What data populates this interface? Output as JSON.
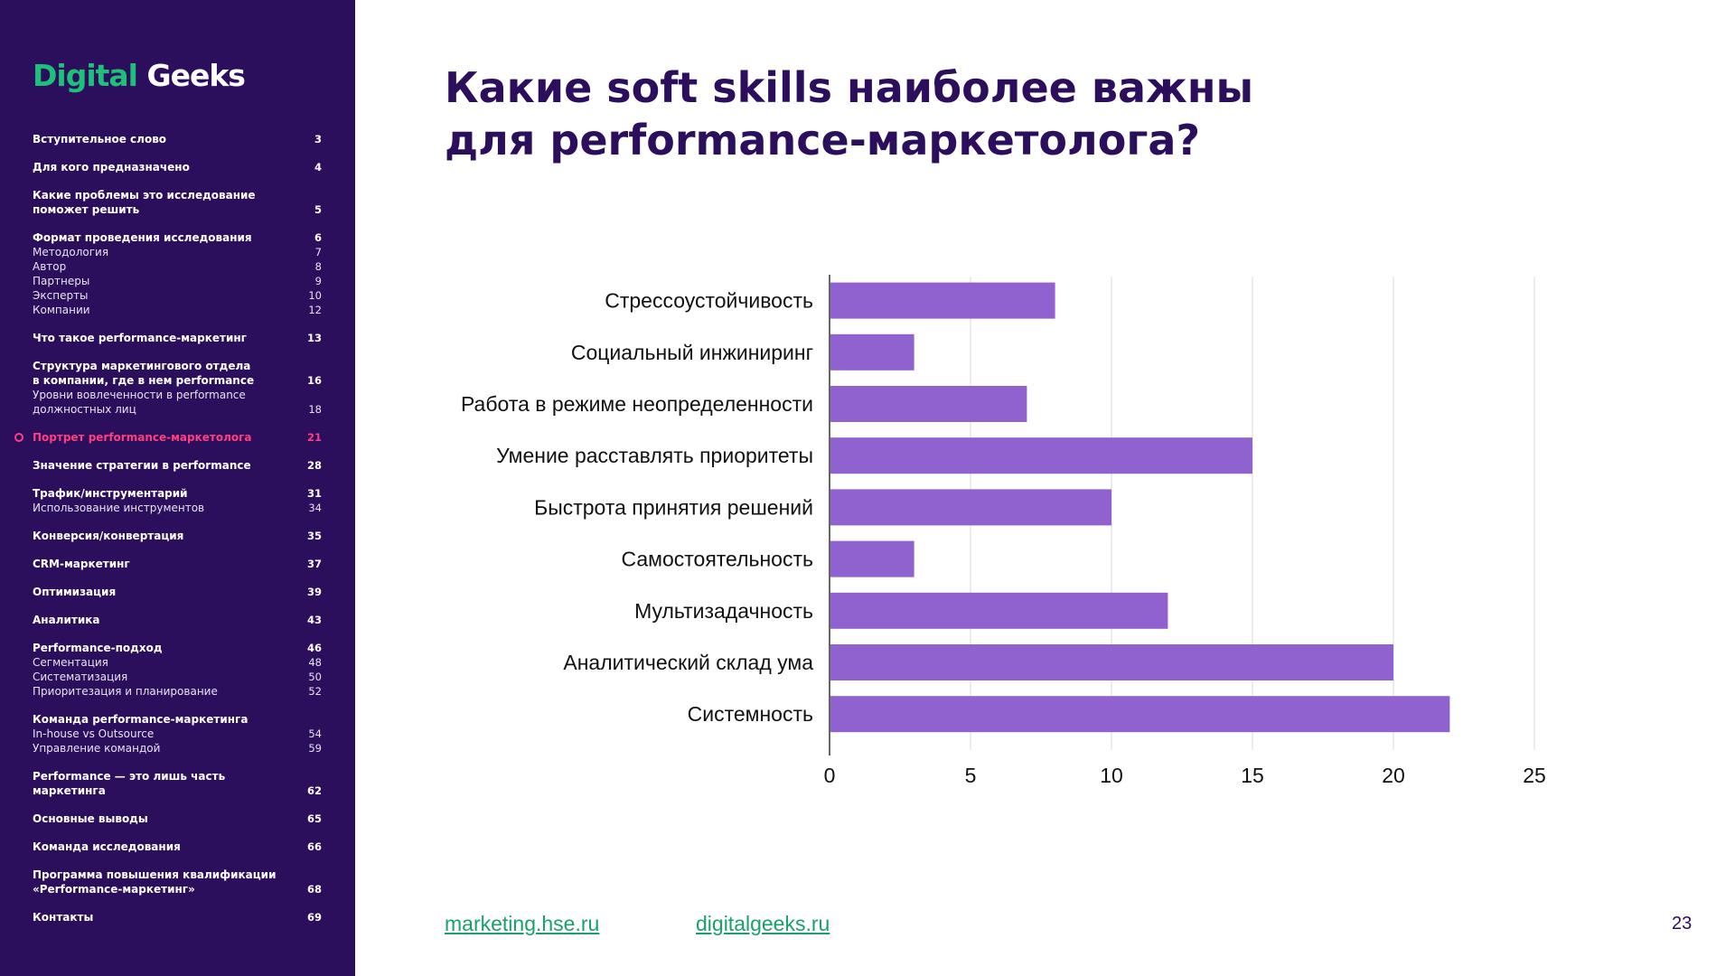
{
  "sidebar": {
    "logo": {
      "part1": "Digital",
      "part2": "Geeks"
    },
    "toc": [
      {
        "rows": [
          {
            "text": "Вступительное слово",
            "page": "3",
            "kind": "main"
          }
        ]
      },
      {
        "rows": [
          {
            "text": "Для кого предназначено",
            "page": "4",
            "kind": "main"
          }
        ]
      },
      {
        "rows": [
          {
            "text": "Какие проблемы это исследование\nпоможет решить",
            "page": "5",
            "kind": "main"
          }
        ]
      },
      {
        "rows": [
          {
            "text": "Формат проведения исследования",
            "page": "6",
            "kind": "main"
          },
          {
            "text": "Методология",
            "page": "7",
            "kind": "sub"
          },
          {
            "text": "Автор",
            "page": "8",
            "kind": "sub"
          },
          {
            "text": "Партнеры",
            "page": "9",
            "kind": "sub"
          },
          {
            "text": "Эксперты",
            "page": "10",
            "kind": "sub"
          },
          {
            "text": "Компании",
            "page": "12",
            "kind": "sub"
          }
        ]
      },
      {
        "rows": [
          {
            "text": "Что такое performance-маркетинг",
            "page": "13",
            "kind": "main"
          }
        ]
      },
      {
        "rows": [
          {
            "text": "Структура маркетингового отдела\nв компании, где в нем performance",
            "page": "16",
            "kind": "main"
          },
          {
            "text": "Уровни вовлеченности в performance\nдолжностных лиц",
            "page": "18",
            "kind": "sub"
          }
        ]
      },
      {
        "active": true,
        "rows": [
          {
            "text": "Портрет performance-маркетолога",
            "page": "21",
            "kind": "main"
          }
        ]
      },
      {
        "rows": [
          {
            "text": "Значение стратегии в performance",
            "page": "28",
            "kind": "main"
          }
        ]
      },
      {
        "rows": [
          {
            "text": "Трафик/инструментарий",
            "page": "31",
            "kind": "main"
          },
          {
            "text": "Использование инструментов",
            "page": "34",
            "kind": "sub"
          }
        ]
      },
      {
        "rows": [
          {
            "text": "Конверсия/конвертация",
            "page": "35",
            "kind": "main"
          }
        ]
      },
      {
        "rows": [
          {
            "text": "CRM-маркетинг",
            "page": "37",
            "kind": "main"
          }
        ]
      },
      {
        "rows": [
          {
            "text": "Оптимизация",
            "page": "39",
            "kind": "main"
          }
        ]
      },
      {
        "rows": [
          {
            "text": "Аналитика",
            "page": "43",
            "kind": "main"
          }
        ]
      },
      {
        "rows": [
          {
            "text": "Performance-подход",
            "page": "46",
            "kind": "main"
          },
          {
            "text": "Сегментация",
            "page": "48",
            "kind": "sub"
          },
          {
            "text": "Систематизация",
            "page": "50",
            "kind": "sub"
          },
          {
            "text": "Приоритезация и планирование",
            "page": "52",
            "kind": "sub"
          }
        ]
      },
      {
        "rows": [
          {
            "text": "Команда performance-маркетинга",
            "page": "",
            "kind": "main"
          },
          {
            "text": "In-house vs Outsource",
            "page": "54",
            "kind": "sub"
          },
          {
            "text": "Управление командой",
            "page": "59",
            "kind": "sub"
          }
        ]
      },
      {
        "rows": [
          {
            "text": "Performance — это лишь часть маркетинга",
            "page": "62",
            "kind": "main"
          }
        ]
      },
      {
        "rows": [
          {
            "text": "Основные выводы",
            "page": "65",
            "kind": "main"
          }
        ]
      },
      {
        "rows": [
          {
            "text": "Команда исследования",
            "page": "66",
            "kind": "main"
          }
        ]
      },
      {
        "rows": [
          {
            "text": "Программа повышения квалификации\n«Performance-маркетинг»",
            "page": "68",
            "kind": "main"
          }
        ]
      },
      {
        "rows": [
          {
            "text": "Контакты",
            "page": "69",
            "kind": "main"
          }
        ]
      }
    ]
  },
  "title": "Какие soft skills наиболее важны\nдля performance-маркетолога?",
  "chart_data": {
    "type": "bar",
    "orientation": "horizontal",
    "categories": [
      "Стрессоустойчивость",
      "Социальный инжиниринг",
      "Работа в режиме неопределенности",
      "Умение расставлять приоритеты",
      "Быстрота принятия решений",
      "Самостоятельность",
      "Мультизадачность",
      "Аналитический склад ума",
      "Системность"
    ],
    "values": [
      8,
      3,
      7,
      15,
      10,
      3,
      12,
      20,
      22
    ],
    "xlim": [
      0,
      25
    ],
    "xticks": [
      0,
      5,
      10,
      15,
      20,
      25
    ],
    "grid": true,
    "bar_color": "#9062d0"
  },
  "footer": {
    "link1": "marketing.hse.ru",
    "link2": "digitalgeeks.ru",
    "page_number": "23"
  },
  "colors": {
    "sidebar_bg": "#2b0f5c",
    "accent_green": "#1fc07a",
    "active_pink": "#ff3f7f"
  }
}
